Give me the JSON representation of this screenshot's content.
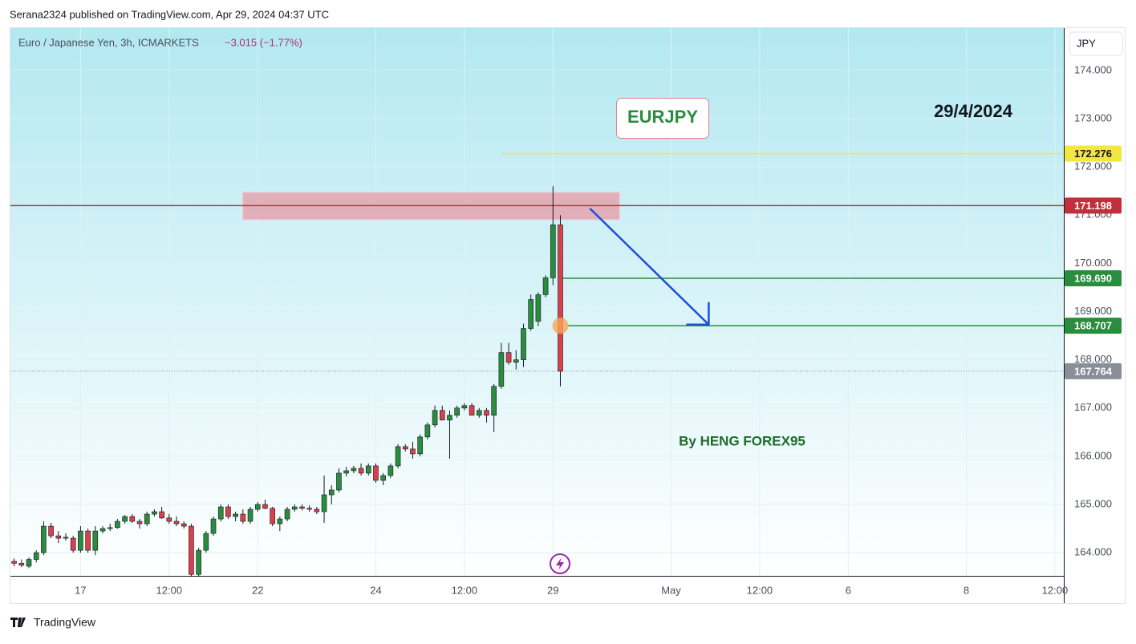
{
  "header": "Serana2324 published on TradingView.com, Apr 29, 2024 04:37 UTC",
  "footer": "TradingView",
  "chart_data": {
    "type": "candlestick",
    "symbol": "Euro / Japanese Yen, 3h, ICMARKETS",
    "change": "−3.015 (−1.77%)",
    "currency": "JPY",
    "title": "EURJPY",
    "date_note": "29/4/2024",
    "author_note": "By HENG FOREX95",
    "up_color": "#2a8c3d",
    "down_color": "#d9404b",
    "ohlc": [
      [
        163.82,
        163.88,
        163.72,
        163.78
      ],
      [
        163.78,
        163.86,
        163.7,
        163.74
      ],
      [
        163.72,
        163.9,
        163.68,
        163.86
      ],
      [
        163.86,
        164.05,
        163.8,
        164.0
      ],
      [
        164.0,
        164.65,
        163.95,
        164.55
      ],
      [
        164.55,
        164.62,
        164.3,
        164.35
      ],
      [
        164.35,
        164.45,
        164.2,
        164.3
      ],
      [
        164.3,
        164.4,
        164.25,
        164.32
      ],
      [
        164.3,
        164.35,
        164.0,
        164.05
      ],
      [
        164.05,
        164.55,
        164.0,
        164.45
      ],
      [
        164.45,
        164.5,
        164.0,
        164.05
      ],
      [
        164.05,
        164.55,
        163.95,
        164.45
      ],
      [
        164.45,
        164.55,
        164.4,
        164.5
      ],
      [
        164.5,
        164.6,
        164.45,
        164.52
      ],
      [
        164.52,
        164.7,
        164.5,
        164.65
      ],
      [
        164.65,
        164.78,
        164.6,
        164.75
      ],
      [
        164.75,
        164.8,
        164.62,
        164.65
      ],
      [
        164.65,
        164.7,
        164.5,
        164.6
      ],
      [
        164.6,
        164.85,
        164.55,
        164.8
      ],
      [
        164.8,
        164.9,
        164.75,
        164.85
      ],
      [
        164.85,
        164.95,
        164.7,
        164.72
      ],
      [
        164.72,
        164.8,
        164.6,
        164.65
      ],
      [
        164.65,
        164.75,
        164.55,
        164.6
      ],
      [
        164.6,
        164.65,
        164.5,
        164.55
      ],
      [
        164.55,
        164.6,
        163.5,
        163.55
      ],
      [
        163.55,
        164.1,
        163.5,
        164.05
      ],
      [
        164.05,
        164.45,
        164.0,
        164.4
      ],
      [
        164.4,
        164.75,
        164.35,
        164.7
      ],
      [
        164.7,
        165.0,
        164.65,
        164.95
      ],
      [
        164.95,
        165.0,
        164.7,
        164.75
      ],
      [
        164.75,
        164.85,
        164.65,
        164.8
      ],
      [
        164.8,
        164.9,
        164.6,
        164.65
      ],
      [
        164.65,
        164.95,
        164.6,
        164.9
      ],
      [
        164.9,
        165.05,
        164.85,
        165.0
      ],
      [
        165.0,
        165.1,
        164.9,
        164.92
      ],
      [
        164.92,
        164.95,
        164.55,
        164.6
      ],
      [
        164.6,
        164.75,
        164.45,
        164.7
      ],
      [
        164.7,
        164.95,
        164.65,
        164.9
      ],
      [
        164.9,
        165.0,
        164.85,
        164.95
      ],
      [
        164.95,
        165.0,
        164.88,
        164.92
      ],
      [
        164.92,
        164.98,
        164.85,
        164.9
      ],
      [
        164.9,
        164.95,
        164.8,
        164.85
      ],
      [
        164.85,
        165.6,
        164.62,
        165.2
      ],
      [
        165.2,
        165.4,
        165.0,
        165.3
      ],
      [
        165.3,
        165.75,
        165.25,
        165.65
      ],
      [
        165.65,
        165.78,
        165.58,
        165.7
      ],
      [
        165.7,
        165.8,
        165.65,
        165.75
      ],
      [
        165.75,
        165.85,
        165.6,
        165.65
      ],
      [
        165.65,
        165.85,
        165.6,
        165.8
      ],
      [
        165.8,
        165.85,
        165.45,
        165.5
      ],
      [
        165.5,
        165.65,
        165.4,
        165.6
      ],
      [
        165.6,
        165.85,
        165.55,
        165.8
      ],
      [
        165.8,
        166.25,
        165.75,
        166.2
      ],
      [
        166.2,
        166.25,
        166.1,
        166.15
      ],
      [
        166.15,
        166.3,
        165.95,
        166.05
      ],
      [
        166.05,
        166.45,
        166.0,
        166.4
      ],
      [
        166.4,
        166.7,
        166.35,
        166.65
      ],
      [
        166.65,
        167.05,
        166.6,
        166.95
      ],
      [
        166.95,
        167.05,
        166.75,
        166.75
      ],
      [
        166.75,
        166.95,
        165.95,
        166.85
      ],
      [
        166.85,
        167.05,
        166.8,
        167.0
      ],
      [
        167.0,
        167.1,
        166.95,
        167.05
      ],
      [
        167.05,
        167.1,
        166.85,
        166.85
      ],
      [
        166.85,
        167.0,
        166.8,
        166.95
      ],
      [
        166.95,
        167.0,
        166.7,
        166.85
      ],
      [
        166.85,
        167.5,
        166.5,
        167.45
      ],
      [
        167.45,
        168.35,
        167.4,
        168.15
      ],
      [
        168.15,
        168.35,
        167.9,
        167.95
      ],
      [
        167.95,
        168.2,
        167.8,
        168.0
      ],
      [
        168.0,
        168.75,
        167.85,
        168.65
      ],
      [
        168.65,
        169.35,
        168.6,
        169.25
      ],
      [
        168.8,
        169.4,
        168.7,
        169.35
      ],
      [
        169.35,
        169.75,
        169.3,
        169.7
      ],
      [
        169.7,
        171.6,
        169.55,
        170.8
      ],
      [
        170.8,
        171.0,
        167.45,
        167.764
      ]
    ],
    "xlim": [
      -0.5,
      142.2
    ],
    "xticks": [
      {
        "value": 9,
        "label": "17"
      },
      {
        "value": 21,
        "label": "12:00"
      },
      {
        "value": 33,
        "label": "22"
      },
      {
        "value": 49,
        "label": "24"
      },
      {
        "value": 61,
        "label": "12:00"
      },
      {
        "value": 73,
        "label": "29"
      },
      {
        "value": 89,
        "label": "May"
      },
      {
        "value": 101,
        "label": "12:00"
      },
      {
        "value": 113,
        "label": "6"
      },
      {
        "value": 129,
        "label": "8"
      },
      {
        "value": 141,
        "label": "12:00"
      }
    ],
    "ylim": [
      163.52,
      174.88
    ],
    "yticks": [
      {
        "value": 164,
        "label": "164.000"
      },
      {
        "value": 165,
        "label": "165.000"
      },
      {
        "value": 166,
        "label": "166.000"
      },
      {
        "value": 167,
        "label": "167.000"
      },
      {
        "value": 168,
        "label": "168.000"
      },
      {
        "value": 169,
        "label": "169.000"
      },
      {
        "value": 170,
        "label": "170.000"
      },
      {
        "value": 171,
        "label": "171.000"
      },
      {
        "value": 172,
        "label": "172.000"
      },
      {
        "value": 173,
        "label": "173.000"
      },
      {
        "value": 174,
        "label": "174.000"
      }
    ],
    "zone": {
      "from": 31,
      "to": 82,
      "low": 170.91,
      "high": 171.47,
      "color": "#e79aa6"
    },
    "arrow": {
      "x": [
        78,
        94.1
      ],
      "y": [
        171.14,
        168.73
      ],
      "color": "#1d4fd6"
    },
    "levels": [
      {
        "value": 172.276,
        "from": 66,
        "color": "#f2e640",
        "text_color": "#131722"
      },
      {
        "value": 171.198,
        "from": -0.5,
        "color": "#c0303c",
        "text_color": "#ffffff"
      },
      {
        "value": 169.69,
        "label": "169.690",
        "from": 74,
        "color": "#2a8c3d",
        "text_color": "#ffffff"
      },
      {
        "value": 168.707,
        "from": 75,
        "color": "#2a8c3d",
        "text_color": "#ffffff"
      },
      {
        "value": 167.764,
        "from": -0.5,
        "color": "#8a8e99",
        "text_color": "#ffffff",
        "dotted": true
      }
    ]
  }
}
